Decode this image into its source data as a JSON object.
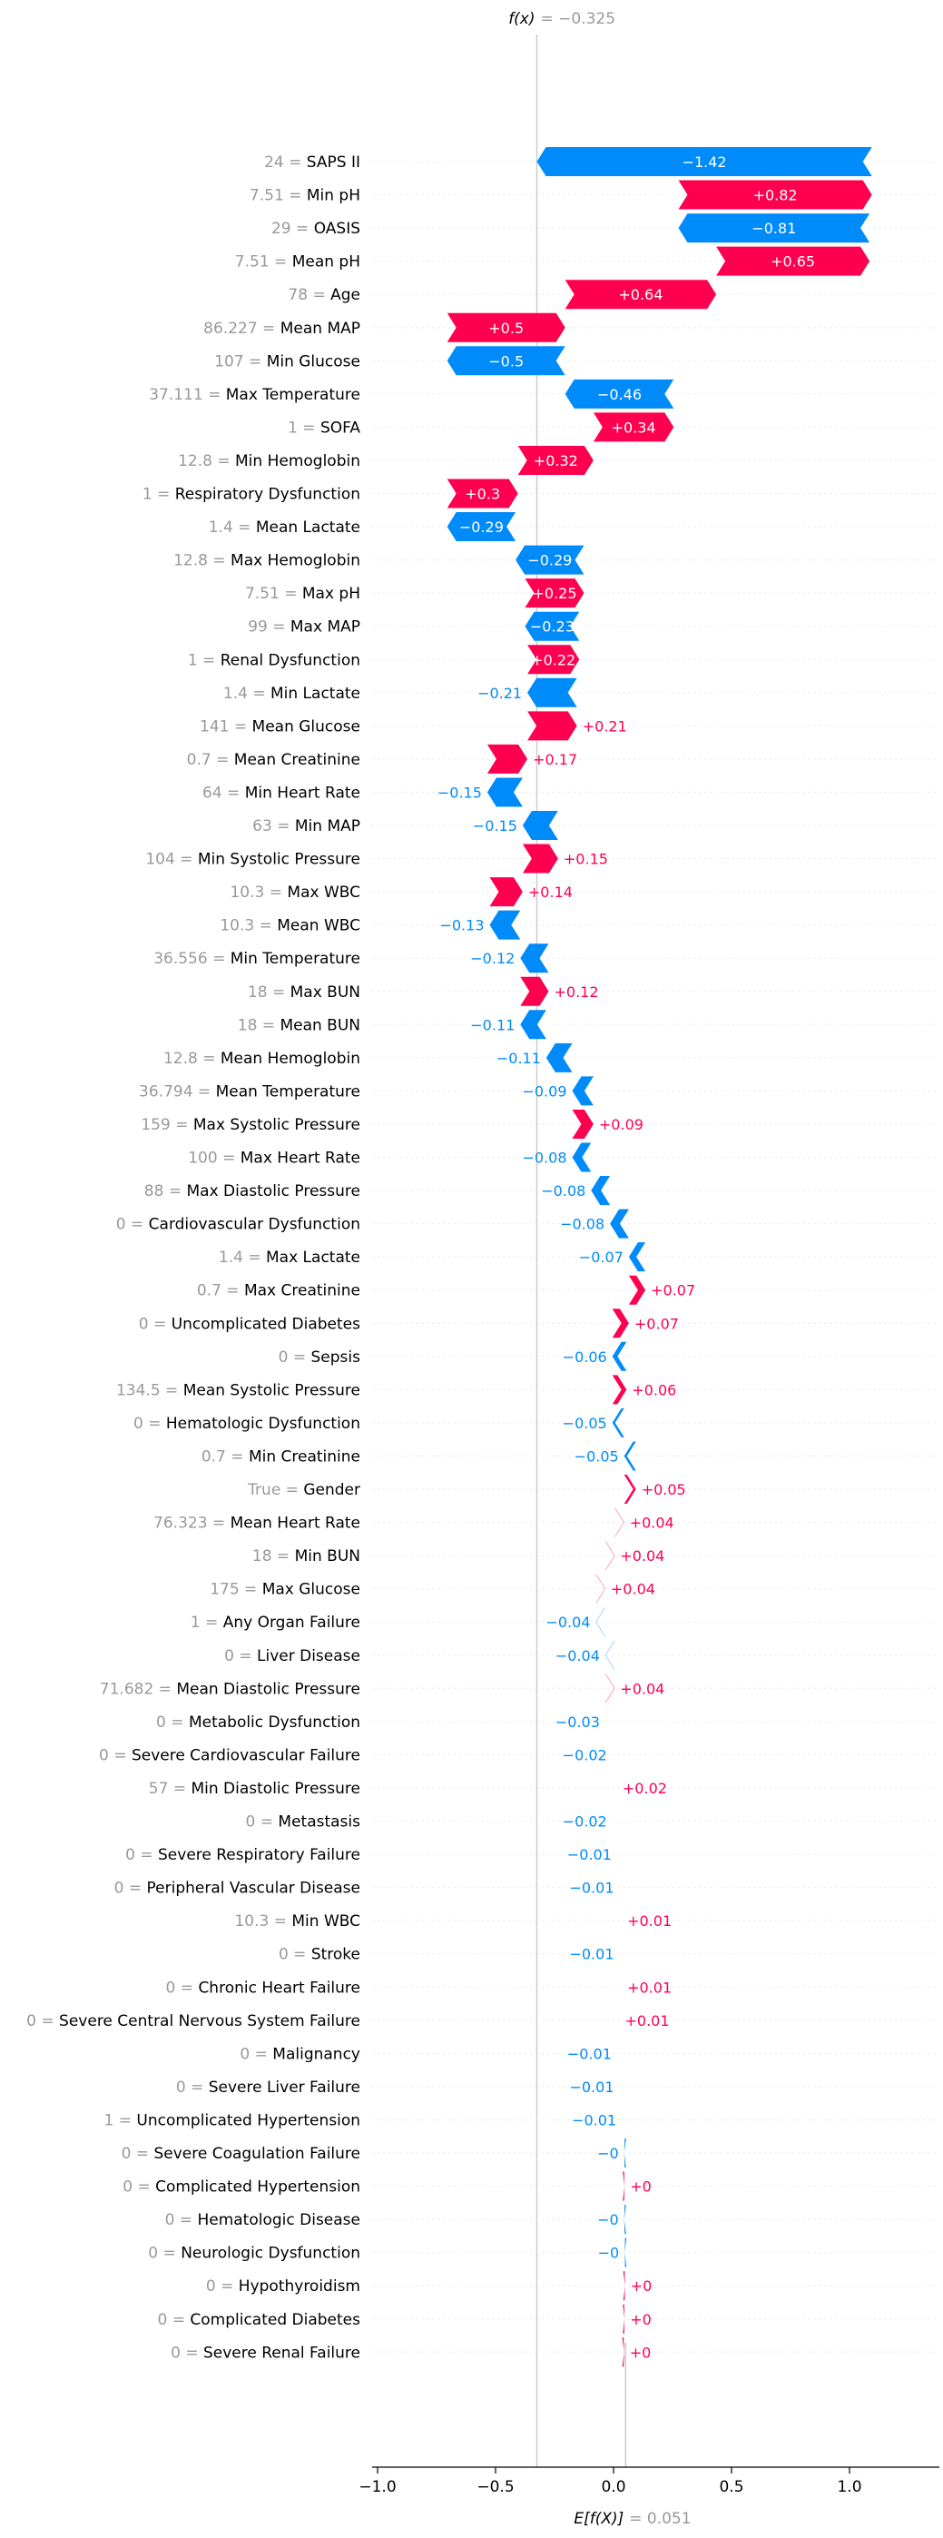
{
  "chart_data": {
    "type": "waterfall",
    "fx_label": "f(x)",
    "fx_value": "= −0.325",
    "fx": -0.325,
    "base_label": "E[f(X)]",
    "base_value_text": "= 0.051",
    "base_value": 0.051,
    "x_ticks": [
      {
        "value": -1.0,
        "label": "−1.0"
      },
      {
        "value": -0.5,
        "label": "−0.5"
      },
      {
        "value": 0.0,
        "label": "0.0"
      },
      {
        "value": 0.5,
        "label": "0.5"
      },
      {
        "value": 1.0,
        "label": "1.0"
      }
    ],
    "xlim": [
      -1.05,
      1.42
    ],
    "colors": {
      "positive": "#ff0051",
      "negative": "#008bfb",
      "value_text": "#999999",
      "line": "#cccccc"
    },
    "features": [
      {
        "value": "24",
        "name": "SAPS II",
        "shap": -1.42,
        "label": "−1.42"
      },
      {
        "value": "7.51",
        "name": "Min pH",
        "shap": 0.82,
        "label": "+0.82"
      },
      {
        "value": "29",
        "name": "OASIS",
        "shap": -0.81,
        "label": "−0.81"
      },
      {
        "value": "7.51",
        "name": "Mean pH",
        "shap": 0.65,
        "label": "+0.65"
      },
      {
        "value": "78",
        "name": "Age",
        "shap": 0.64,
        "label": "+0.64"
      },
      {
        "value": "86.227",
        "name": "Mean MAP",
        "shap": 0.5,
        "label": "+0.5"
      },
      {
        "value": "107",
        "name": "Min Glucose",
        "shap": -0.5,
        "label": "−0.5"
      },
      {
        "value": "37.111",
        "name": "Max Temperature",
        "shap": -0.46,
        "label": "−0.46"
      },
      {
        "value": "1",
        "name": "SOFA",
        "shap": 0.34,
        "label": "+0.34"
      },
      {
        "value": "12.8",
        "name": "Min Hemoglobin",
        "shap": 0.32,
        "label": "+0.32"
      },
      {
        "value": "1",
        "name": "Respiratory Dysfunction",
        "shap": 0.3,
        "label": "+0.3"
      },
      {
        "value": "1.4",
        "name": "Mean Lactate",
        "shap": -0.29,
        "label": "−0.29"
      },
      {
        "value": "12.8",
        "name": "Max Hemoglobin",
        "shap": -0.29,
        "label": "−0.29"
      },
      {
        "value": "7.51",
        "name": "Max pH",
        "shap": 0.25,
        "label": "+0.25"
      },
      {
        "value": "99",
        "name": "Max MAP",
        "shap": -0.23,
        "label": "−0.23"
      },
      {
        "value": "1",
        "name": "Renal Dysfunction",
        "shap": 0.22,
        "label": "+0.22"
      },
      {
        "value": "1.4",
        "name": "Min Lactate",
        "shap": -0.21,
        "label": "−0.21"
      },
      {
        "value": "141",
        "name": "Mean Glucose",
        "shap": 0.21,
        "label": "+0.21"
      },
      {
        "value": "0.7",
        "name": "Mean Creatinine",
        "shap": 0.17,
        "label": "+0.17"
      },
      {
        "value": "64",
        "name": "Min Heart Rate",
        "shap": -0.15,
        "label": "−0.15"
      },
      {
        "value": "63",
        "name": "Min MAP",
        "shap": -0.15,
        "label": "−0.15"
      },
      {
        "value": "104",
        "name": "Min Systolic Pressure",
        "shap": 0.15,
        "label": "+0.15"
      },
      {
        "value": "10.3",
        "name": "Max WBC",
        "shap": 0.14,
        "label": "+0.14"
      },
      {
        "value": "10.3",
        "name": "Mean WBC",
        "shap": -0.13,
        "label": "−0.13"
      },
      {
        "value": "36.556",
        "name": "Min Temperature",
        "shap": -0.12,
        "label": "−0.12"
      },
      {
        "value": "18",
        "name": "Max BUN",
        "shap": 0.12,
        "label": "+0.12"
      },
      {
        "value": "18",
        "name": "Mean BUN",
        "shap": -0.11,
        "label": "−0.11"
      },
      {
        "value": "12.8",
        "name": "Mean Hemoglobin",
        "shap": -0.11,
        "label": "−0.11"
      },
      {
        "value": "36.794",
        "name": "Mean Temperature",
        "shap": -0.09,
        "label": "−0.09"
      },
      {
        "value": "159",
        "name": "Max Systolic Pressure",
        "shap": 0.09,
        "label": "+0.09"
      },
      {
        "value": "100",
        "name": "Max Heart Rate",
        "shap": -0.08,
        "label": "−0.08"
      },
      {
        "value": "88",
        "name": "Max Diastolic Pressure",
        "shap": -0.08,
        "label": "−0.08"
      },
      {
        "value": "0",
        "name": "Cardiovascular Dysfunction",
        "shap": -0.08,
        "label": "−0.08"
      },
      {
        "value": "1.4",
        "name": "Max Lactate",
        "shap": -0.07,
        "label": "−0.07"
      },
      {
        "value": "0.7",
        "name": "Max Creatinine",
        "shap": 0.07,
        "label": "+0.07"
      },
      {
        "value": "0",
        "name": "Uncomplicated Diabetes",
        "shap": 0.07,
        "label": "+0.07"
      },
      {
        "value": "0",
        "name": "Sepsis",
        "shap": -0.06,
        "label": "−0.06"
      },
      {
        "value": "134.5",
        "name": "Mean Systolic Pressure",
        "shap": 0.06,
        "label": "+0.06"
      },
      {
        "value": "0",
        "name": "Hematologic Dysfunction",
        "shap": -0.05,
        "label": "−0.05"
      },
      {
        "value": "0.7",
        "name": "Min Creatinine",
        "shap": -0.05,
        "label": "−0.05"
      },
      {
        "value": "True",
        "name": "Gender",
        "shap": 0.05,
        "label": "+0.05"
      },
      {
        "value": "76.323",
        "name": "Mean Heart Rate",
        "shap": 0.04,
        "label": "+0.04"
      },
      {
        "value": "18",
        "name": "Min BUN",
        "shap": 0.04,
        "label": "+0.04"
      },
      {
        "value": "175",
        "name": "Max Glucose",
        "shap": 0.04,
        "label": "+0.04"
      },
      {
        "value": "1",
        "name": "Any Organ Failure",
        "shap": -0.04,
        "label": "−0.04"
      },
      {
        "value": "0",
        "name": "Liver Disease",
        "shap": -0.04,
        "label": "−0.04"
      },
      {
        "value": "71.682",
        "name": "Mean Diastolic Pressure",
        "shap": 0.04,
        "label": "+0.04"
      },
      {
        "value": "0",
        "name": "Metabolic Dysfunction",
        "shap": -0.03,
        "label": "−0.03"
      },
      {
        "value": "0",
        "name": "Severe Cardiovascular Failure",
        "shap": -0.02,
        "label": "−0.02"
      },
      {
        "value": "57",
        "name": "Min Diastolic Pressure",
        "shap": 0.02,
        "label": "+0.02"
      },
      {
        "value": "0",
        "name": "Metastasis",
        "shap": -0.02,
        "label": "−0.02"
      },
      {
        "value": "0",
        "name": "Severe Respiratory Failure",
        "shap": -0.01,
        "label": "−0.01"
      },
      {
        "value": "0",
        "name": "Peripheral Vascular Disease",
        "shap": -0.01,
        "label": "−0.01"
      },
      {
        "value": "10.3",
        "name": "Min WBC",
        "shap": 0.01,
        "label": "+0.01"
      },
      {
        "value": "0",
        "name": "Stroke",
        "shap": -0.01,
        "label": "−0.01"
      },
      {
        "value": "0",
        "name": "Chronic Heart Failure",
        "shap": 0.01,
        "label": "+0.01"
      },
      {
        "value": "0",
        "name": "Severe Central Nervous System Failure",
        "shap": 0.01,
        "label": "+0.01"
      },
      {
        "value": "0",
        "name": "Malignancy",
        "shap": -0.01,
        "label": "−0.01"
      },
      {
        "value": "0",
        "name": "Severe Liver Failure",
        "shap": -0.01,
        "label": "−0.01"
      },
      {
        "value": "1",
        "name": "Uncomplicated Hypertension",
        "shap": -0.01,
        "label": "−0.01"
      },
      {
        "value": "0",
        "name": "Severe Coagulation Failure",
        "shap": -0.002,
        "label": "−0"
      },
      {
        "value": "0",
        "name": "Complicated Hypertension",
        "shap": 0.002,
        "label": "+0"
      },
      {
        "value": "0",
        "name": "Hematologic Disease",
        "shap": -0.002,
        "label": "−0"
      },
      {
        "value": "0",
        "name": "Neurologic Dysfunction",
        "shap": -0.002,
        "label": "−0"
      },
      {
        "value": "0",
        "name": "Hypothyroidism",
        "shap": 0.002,
        "label": "+0"
      },
      {
        "value": "0",
        "name": "Complicated Diabetes",
        "shap": 0.002,
        "label": "+0"
      },
      {
        "value": "0",
        "name": "Severe Renal Failure",
        "shap": 0.002,
        "label": "+0"
      }
    ]
  }
}
